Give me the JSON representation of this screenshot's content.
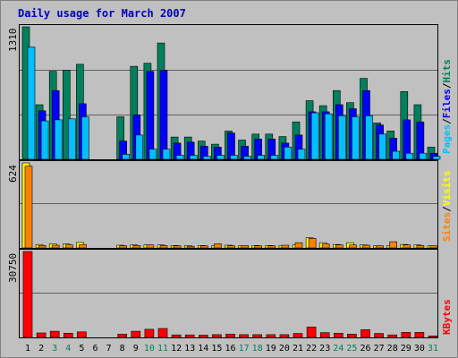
{
  "colors": {
    "background": "#c0c0c0",
    "frame": "#808080",
    "plot_border": "#000000",
    "gridline": "#606060",
    "hits": "#00805c",
    "files": "#0000ff",
    "pages": "#00c0ff",
    "visits": "#ffff00",
    "sites": "#ff8000",
    "kbytes": "#ff0000",
    "title_text": "#0000c0",
    "weekend_day": "#00805c",
    "weekday_day": "#000000"
  },
  "chart_data": [
    {
      "type": "bar",
      "title": "Daily usage for March 2007",
      "axis_max_label": "1310",
      "ylim": [
        0,
        1310
      ],
      "legend": [
        {
          "label": "Pages",
          "color": "#00c0ff"
        },
        {
          "label": "Files",
          "color": "#0000ff"
        },
        {
          "label": "Hits",
          "color": "#00805c"
        }
      ],
      "legend_separator": "/",
      "legend_placement": "right-vertical",
      "categories": [
        "1",
        "2",
        "3",
        "4",
        "5",
        "6",
        "7",
        "8",
        "9",
        "10",
        "11",
        "12",
        "13",
        "14",
        "15",
        "16",
        "17",
        "18",
        "19",
        "20",
        "21",
        "22",
        "23",
        "24",
        "25",
        "26",
        "27",
        "28",
        "29",
        "30",
        "31"
      ],
      "series": [
        {
          "name": "Hits",
          "values": [
            1310,
            540,
            870,
            880,
            940,
            0,
            0,
            420,
            920,
            950,
            1150,
            220,
            220,
            180,
            150,
            280,
            190,
            250,
            250,
            225,
            370,
            580,
            530,
            680,
            560,
            800,
            360,
            280,
            670,
            540,
            120
          ]
        },
        {
          "name": "Files",
          "values": [
            0,
            480,
            680,
            0,
            550,
            0,
            0,
            180,
            440,
            870,
            880,
            160,
            170,
            130,
            120,
            260,
            130,
            200,
            200,
            160,
            240,
            470,
            470,
            540,
            500,
            680,
            340,
            210,
            390,
            370,
            60
          ]
        },
        {
          "name": "Pages",
          "values": [
            1110,
            380,
            390,
            400,
            420,
            0,
            0,
            50,
            240,
            100,
            100,
            40,
            40,
            30,
            40,
            40,
            30,
            40,
            40,
            120,
            100,
            460,
            450,
            430,
            420,
            430,
            250,
            80,
            60,
            60,
            30
          ]
        }
      ],
      "grid": true
    },
    {
      "type": "bar",
      "axis_max_label": "624",
      "ylim": [
        0,
        624
      ],
      "legend": [
        {
          "label": "Sites",
          "color": "#ff8000"
        },
        {
          "label": "Visits",
          "color": "#ffff00"
        }
      ],
      "legend_separator": "/",
      "legend_placement": "right-vertical",
      "categories": [
        "1",
        "2",
        "3",
        "4",
        "5",
        "6",
        "7",
        "8",
        "9",
        "10",
        "11",
        "12",
        "13",
        "14",
        "15",
        "16",
        "17",
        "18",
        "19",
        "20",
        "21",
        "22",
        "23",
        "24",
        "25",
        "26",
        "27",
        "28",
        "29",
        "30",
        "31"
      ],
      "series": [
        {
          "name": "Visits",
          "values": [
            624,
            25,
            30,
            28,
            40,
            0,
            0,
            20,
            22,
            22,
            22,
            18,
            18,
            18,
            15,
            20,
            18,
            18,
            18,
            18,
            22,
            75,
            38,
            25,
            38,
            22,
            15,
            18,
            25,
            22,
            15
          ]
        },
        {
          "name": "Sites",
          "values": [
            600,
            18,
            20,
            22,
            25,
            0,
            0,
            15,
            18,
            22,
            18,
            15,
            12,
            15,
            30,
            15,
            18,
            15,
            15,
            20,
            38,
            70,
            28,
            22,
            22,
            20,
            15,
            45,
            22,
            18,
            15
          ]
        }
      ],
      "grid": true
    },
    {
      "type": "bar",
      "axis_max_label": "30750",
      "ylim": [
        0,
        30750
      ],
      "legend": [
        {
          "label": "KBytes",
          "color": "#ff0000"
        }
      ],
      "legend_placement": "right-vertical",
      "categories": [
        "1",
        "2",
        "3",
        "4",
        "5",
        "6",
        "7",
        "8",
        "9",
        "10",
        "11",
        "12",
        "13",
        "14",
        "15",
        "16",
        "17",
        "18",
        "19",
        "20",
        "21",
        "22",
        "23",
        "24",
        "25",
        "26",
        "27",
        "28",
        "29",
        "30",
        "31"
      ],
      "series": [
        {
          "name": "KBytes",
          "values": [
            30750,
            1600,
            2200,
            1500,
            2000,
            0,
            0,
            1200,
            2200,
            2900,
            3200,
            900,
            900,
            800,
            1000,
            1200,
            1000,
            1000,
            1000,
            1000,
            1400,
            3700,
            1700,
            1500,
            1200,
            2800,
            1400,
            900,
            1800,
            1800,
            500
          ]
        }
      ],
      "grid": true
    }
  ],
  "days": {
    "labels": [
      "1",
      "2",
      "3",
      "4",
      "5",
      "6",
      "7",
      "8",
      "9",
      "10",
      "11",
      "12",
      "13",
      "14",
      "15",
      "16",
      "17",
      "18",
      "19",
      "20",
      "21",
      "22",
      "23",
      "24",
      "25",
      "26",
      "27",
      "28",
      "29",
      "30",
      "31"
    ],
    "highlighted": [
      "3",
      "4",
      "10",
      "11",
      "17",
      "18",
      "24",
      "25",
      "31"
    ]
  }
}
